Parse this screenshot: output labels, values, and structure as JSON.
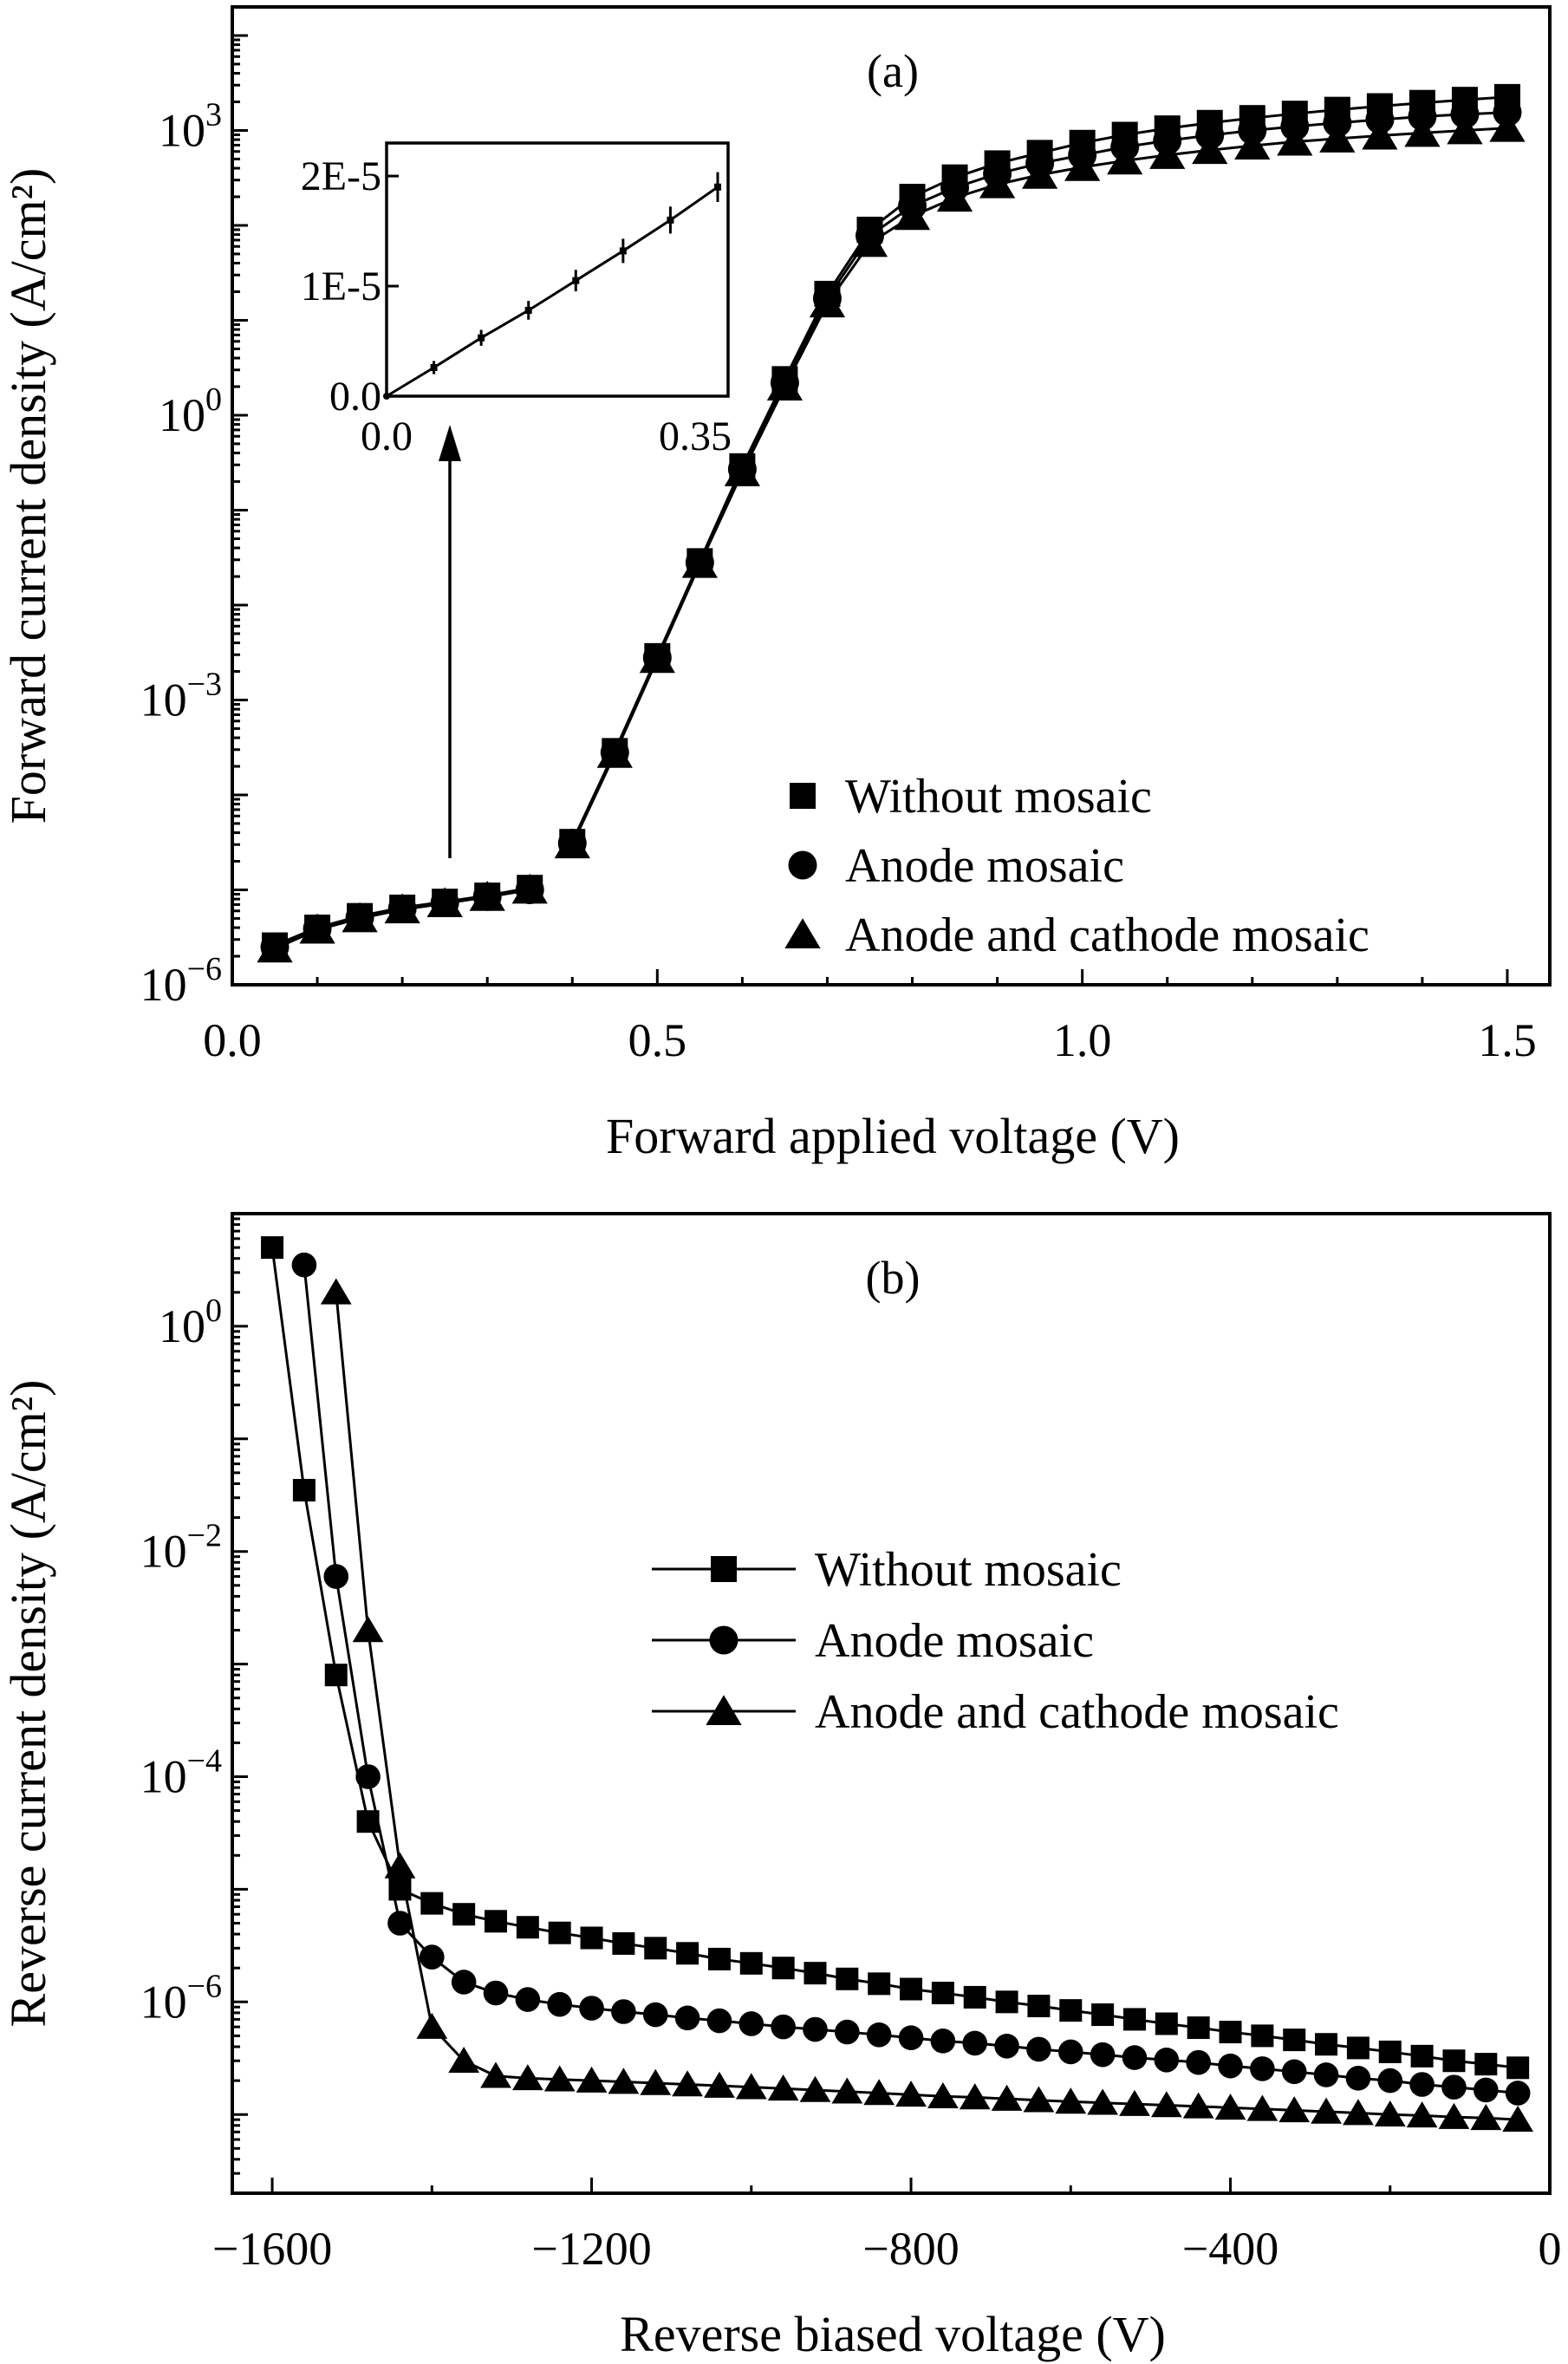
{
  "chart_data": [
    {
      "id": "a",
      "type": "scatter",
      "panel_label": "(a)",
      "xlabel": "Forward applied voltage (V)",
      "ylabel": "Forward current density (A/cm²)",
      "xscale": "linear",
      "yscale": "log",
      "xlim": [
        0.0,
        1.55
      ],
      "ylim": [
        1e-06,
        20000
      ],
      "xticks": [
        {
          "value": 0.0,
          "label": "0.0"
        },
        {
          "value": 0.5,
          "label": "0.5"
        },
        {
          "value": 1.0,
          "label": "1.0"
        },
        {
          "value": 1.5,
          "label": "1.5"
        }
      ],
      "yticks": [
        {
          "value": 1e-06,
          "base": "10",
          "exp": "−6"
        },
        {
          "value": 0.001,
          "base": "10",
          "exp": "−3"
        },
        {
          "value": 1,
          "base": "10",
          "exp": "0"
        },
        {
          "value": 1000,
          "base": "10",
          "exp": "3"
        }
      ],
      "legend": {
        "position": "bottom-right",
        "style": "markers"
      },
      "series": [
        {
          "name": "Without mosaic",
          "marker": "square",
          "x": [
            0.05,
            0.1,
            0.15,
            0.2,
            0.25,
            0.3,
            0.35,
            0.4,
            0.45,
            0.5,
            0.55,
            0.6,
            0.65,
            0.7,
            0.75,
            0.8,
            0.85,
            0.9,
            0.95,
            1.0,
            1.05,
            1.1,
            1.15,
            1.2,
            1.25,
            1.3,
            1.35,
            1.4,
            1.45,
            1.5
          ],
          "y": [
            2.6e-06,
            4e-06,
            5.3e-06,
            6.5e-06,
            7.5e-06,
            8.7e-06,
            1.05e-05,
            3.2e-05,
            0.00029,
            0.0029,
            0.029,
            0.29,
            2.4,
            19,
            90,
            200,
            320,
            450,
            580,
            740,
            900,
            1050,
            1200,
            1350,
            1500,
            1650,
            1800,
            1950,
            2100,
            2250
          ]
        },
        {
          "name": "Anode mosaic",
          "marker": "circle",
          "x": [
            0.05,
            0.1,
            0.15,
            0.2,
            0.25,
            0.3,
            0.35,
            0.4,
            0.45,
            0.5,
            0.55,
            0.6,
            0.65,
            0.7,
            0.75,
            0.8,
            0.85,
            0.9,
            0.95,
            1.0,
            1.05,
            1.1,
            1.15,
            1.2,
            1.25,
            1.3,
            1.35,
            1.4,
            1.45,
            1.5
          ],
          "y": [
            2.5e-06,
            3.9e-06,
            5.1e-06,
            6.3e-06,
            7.3e-06,
            8.5e-06,
            1e-05,
            3.1e-05,
            0.00028,
            0.0028,
            0.028,
            0.27,
            2.2,
            17,
            78,
            160,
            250,
            350,
            450,
            550,
            670,
            780,
            890,
            1000,
            1100,
            1200,
            1300,
            1400,
            1480,
            1550
          ]
        },
        {
          "name": "Anode and cathode mosaic",
          "marker": "triangle",
          "x": [
            0.05,
            0.1,
            0.15,
            0.2,
            0.25,
            0.3,
            0.35,
            0.4,
            0.45,
            0.5,
            0.55,
            0.6,
            0.65,
            0.7,
            0.75,
            0.8,
            0.85,
            0.9,
            0.95,
            1.0,
            1.05,
            1.1,
            1.15,
            1.2,
            1.25,
            1.3,
            1.35,
            1.4,
            1.45,
            1.5
          ],
          "y": [
            2.4e-06,
            3.8e-06,
            5e-06,
            6.2e-06,
            7.2e-06,
            8.4e-06,
            1e-05,
            3e-05,
            0.00027,
            0.0027,
            0.027,
            0.25,
            2.0,
            15,
            65,
            125,
            195,
            270,
            340,
            410,
            480,
            550,
            620,
            690,
            760,
            820,
            880,
            940,
            1000,
            1060
          ]
        }
      ],
      "inset": {
        "type": "line",
        "xscale": "linear",
        "yscale": "linear",
        "xlim": [
          0.0,
          0.35
        ],
        "ylim": [
          0,
          2.3e-05
        ],
        "xticks": [
          {
            "value": 0.0,
            "label": "0.0"
          },
          {
            "value": 0.35,
            "label": "0.35"
          }
        ],
        "yticks": [
          {
            "value": 0,
            "label": "0.0"
          },
          {
            "value": 1e-05,
            "label": "1E-5"
          },
          {
            "value": 2e-05,
            "label": "2E-5"
          }
        ],
        "x": [
          0.0,
          0.05,
          0.1,
          0.15,
          0.2,
          0.25,
          0.3,
          0.35
        ],
        "y": [
          0,
          2.6e-06,
          5.3e-06,
          7.8e-06,
          1.05e-05,
          1.32e-05,
          1.6e-05,
          1.9e-05
        ]
      }
    },
    {
      "id": "b",
      "type": "line",
      "panel_label": "(b)",
      "xlabel": "Reverse biased voltage (V)",
      "ylabel": "Reverse current density  (A/cm²)",
      "xscale": "linear",
      "yscale": "log",
      "xlim": [
        -1650,
        0
      ],
      "ylim": [
        2e-08,
        10
      ],
      "xticks": [
        {
          "value": -1600,
          "label": "−1600"
        },
        {
          "value": -1200,
          "label": "−1200"
        },
        {
          "value": -800,
          "label": "−800"
        },
        {
          "value": -400,
          "label": "−400"
        },
        {
          "value": 0,
          "label": "0"
        }
      ],
      "yticks": [
        {
          "value": 1e-06,
          "base": "10",
          "exp": "−6"
        },
        {
          "value": 0.0001,
          "base": "10",
          "exp": "−4"
        },
        {
          "value": 0.01,
          "base": "10",
          "exp": "−2"
        },
        {
          "value": 1,
          "base": "10",
          "exp": "0"
        }
      ],
      "legend": {
        "position": "center-right",
        "style": "line-and-marker"
      },
      "series": [
        {
          "name": "Without mosaic",
          "marker": "square",
          "x": [
            -1600,
            -1560,
            -1520,
            -1480,
            -1440,
            -1400,
            -1360,
            -1320,
            -1280,
            -1240,
            -1200,
            -1160,
            -1120,
            -1080,
            -1040,
            -1000,
            -960,
            -920,
            -880,
            -840,
            -800,
            -760,
            -720,
            -680,
            -640,
            -600,
            -560,
            -520,
            -480,
            -440,
            -400,
            -360,
            -320,
            -280,
            -240,
            -200,
            -160,
            -120,
            -80,
            -40
          ],
          "y": [
            5,
            0.035,
            0.0008,
            4e-05,
            1e-05,
            7.5e-06,
            6e-06,
            5.2e-06,
            4.6e-06,
            4.1e-06,
            3.7e-06,
            3.3e-06,
            3e-06,
            2.7e-06,
            2.4e-06,
            2.2e-06,
            2e-06,
            1.8e-06,
            1.6e-06,
            1.45e-06,
            1.3e-06,
            1.2e-06,
            1.1e-06,
            1e-06,
            9.2e-07,
            8.4e-07,
            7.7e-07,
            7e-07,
            6.4e-07,
            5.9e-07,
            5.4e-07,
            5e-07,
            4.6e-07,
            4.2e-07,
            3.9e-07,
            3.6e-07,
            3.3e-07,
            3e-07,
            2.8e-07,
            2.6e-07
          ]
        },
        {
          "name": "Anode mosaic",
          "marker": "circle",
          "x": [
            -1560,
            -1520,
            -1480,
            -1440,
            -1400,
            -1360,
            -1320,
            -1280,
            -1240,
            -1200,
            -1160,
            -1120,
            -1080,
            -1040,
            -1000,
            -960,
            -920,
            -880,
            -840,
            -800,
            -760,
            -720,
            -680,
            -640,
            -600,
            -560,
            -520,
            -480,
            -440,
            -400,
            -360,
            -320,
            -280,
            -240,
            -200,
            -160,
            -120,
            -80,
            -40
          ],
          "y": [
            3.5,
            0.006,
            0.0001,
            5e-06,
            2.5e-06,
            1.5e-06,
            1.2e-06,
            1.05e-06,
            9.5e-07,
            8.8e-07,
            8.2e-07,
            7.7e-07,
            7.2e-07,
            6.8e-07,
            6.4e-07,
            6e-07,
            5.7e-07,
            5.4e-07,
            5.1e-07,
            4.8e-07,
            4.5e-07,
            4.3e-07,
            4.05e-07,
            3.8e-07,
            3.6e-07,
            3.4e-07,
            3.2e-07,
            3.05e-07,
            2.9e-07,
            2.7e-07,
            2.55e-07,
            2.4e-07,
            2.25e-07,
            2.1e-07,
            2e-07,
            1.85e-07,
            1.75e-07,
            1.65e-07,
            1.55e-07
          ]
        },
        {
          "name": "Anode and cathode mosaic",
          "marker": "triangle",
          "x": [
            -1520,
            -1480,
            -1440,
            -1400,
            -1360,
            -1320,
            -1280,
            -1240,
            -1200,
            -1160,
            -1120,
            -1080,
            -1040,
            -1000,
            -960,
            -920,
            -880,
            -840,
            -800,
            -760,
            -720,
            -680,
            -640,
            -600,
            -560,
            -520,
            -480,
            -440,
            -400,
            -360,
            -320,
            -280,
            -240,
            -200,
            -160,
            -120,
            -80,
            -40
          ],
          "y": [
            2,
            0.002,
            1.6e-05,
            6e-07,
            3e-07,
            2.2e-07,
            2.1e-07,
            2.05e-07,
            2e-07,
            1.95e-07,
            1.9e-07,
            1.85e-07,
            1.8e-07,
            1.75e-07,
            1.7e-07,
            1.65e-07,
            1.6e-07,
            1.55e-07,
            1.5e-07,
            1.45e-07,
            1.42e-07,
            1.38e-07,
            1.34e-07,
            1.3e-07,
            1.27e-07,
            1.24e-07,
            1.21e-07,
            1.18e-07,
            1.15e-07,
            1.12e-07,
            1.09e-07,
            1.06e-07,
            1.03e-07,
            1e-07,
            9.8e-08,
            9.5e-08,
            9.3e-08,
            9e-08
          ]
        }
      ]
    }
  ]
}
